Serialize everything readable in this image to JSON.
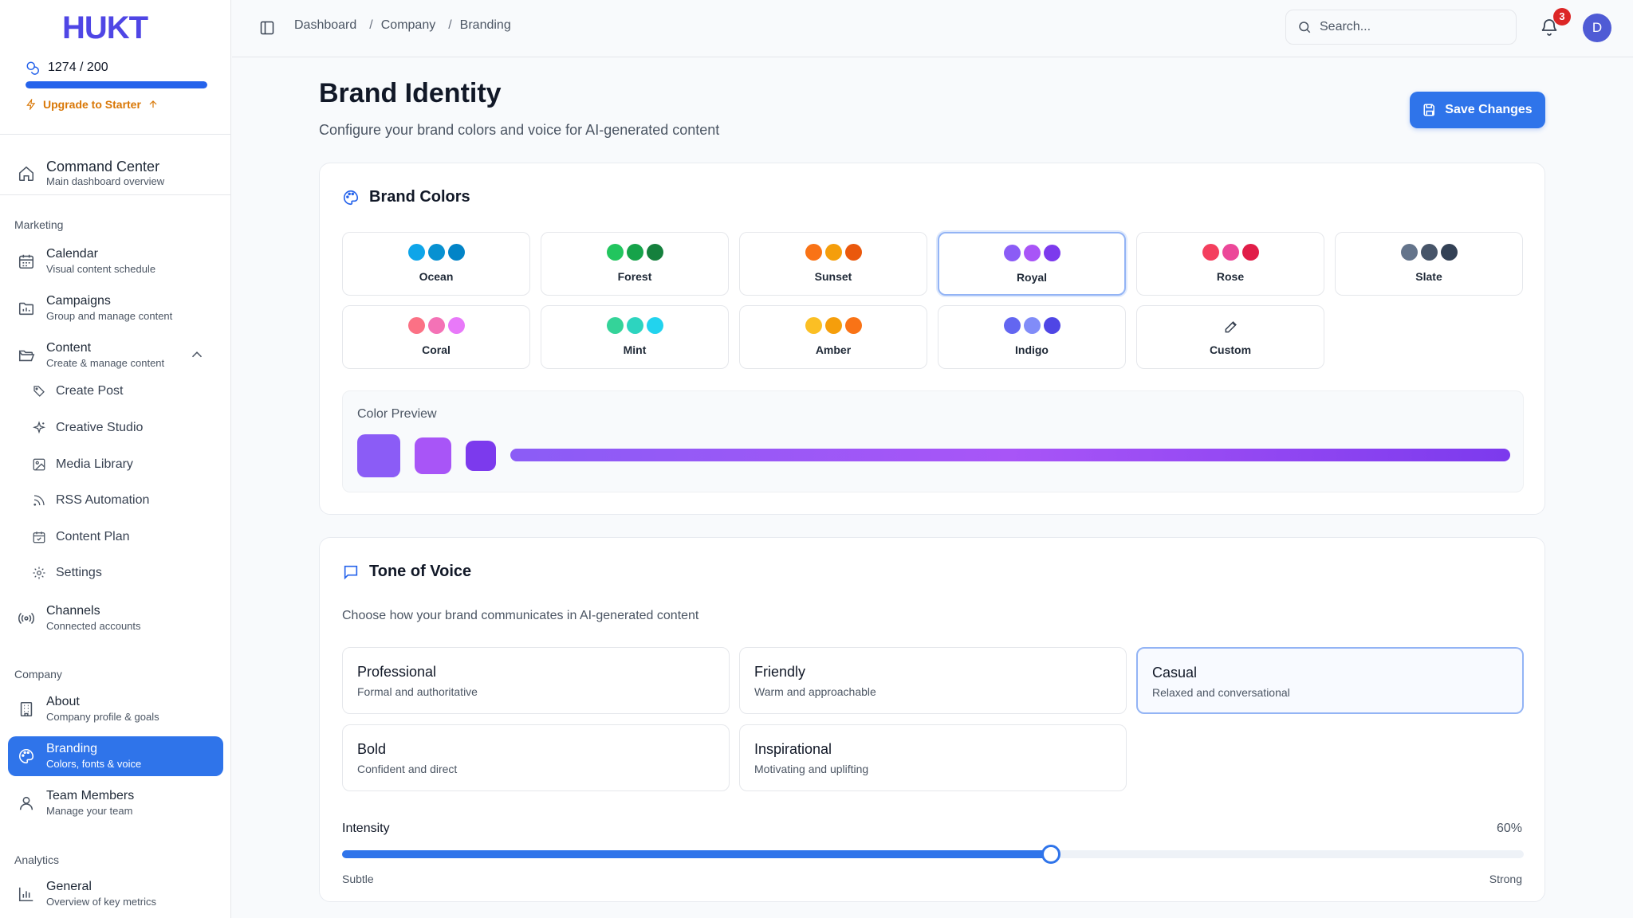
{
  "app": {
    "logo_text": "HUKT"
  },
  "credits": {
    "label": "1274 / 200",
    "fill_fraction": 1.0,
    "upgrade_label": "Upgrade to Starter"
  },
  "sidebar": {
    "command_center": {
      "title": "Command Center",
      "sub": "Main dashboard overview"
    },
    "sections": {
      "marketing": "Marketing",
      "company": "Company",
      "analytics": "Analytics"
    },
    "calendar": {
      "title": "Calendar",
      "sub": "Visual content schedule"
    },
    "campaigns": {
      "title": "Campaigns",
      "sub": "Group and manage content"
    },
    "content": {
      "title": "Content",
      "sub": "Create & manage content"
    },
    "content_items": [
      "Create Post",
      "Creative Studio",
      "Media Library",
      "RSS Automation",
      "Content Plan",
      "Settings"
    ],
    "channels": {
      "title": "Channels",
      "sub": "Connected accounts"
    },
    "about": {
      "title": "About",
      "sub": "Company profile & goals"
    },
    "branding": {
      "title": "Branding",
      "sub": "Colors, fonts & voice"
    },
    "team": {
      "title": "Team Members",
      "sub": "Manage your team"
    },
    "general": {
      "title": "General",
      "sub": "Overview of key metrics"
    }
  },
  "topbar": {
    "breadcrumbs": [
      "Dashboard",
      "Company",
      "Branding"
    ],
    "search_placeholder": "Search...",
    "notification_count": "3",
    "avatar_initial": "D"
  },
  "page": {
    "title": "Brand Identity",
    "subtitle": "Configure your brand colors and voice for AI-generated content",
    "save_label": "Save Changes"
  },
  "brand_colors": {
    "heading": "Brand Colors",
    "selected": "Royal",
    "palettes": [
      {
        "name": "Ocean",
        "colors": [
          "#0ea5e9",
          "#0891d1",
          "#0284c7"
        ]
      },
      {
        "name": "Forest",
        "colors": [
          "#22c55e",
          "#16a34a",
          "#15803d"
        ]
      },
      {
        "name": "Sunset",
        "colors": [
          "#f97316",
          "#f59e0b",
          "#ea580c"
        ]
      },
      {
        "name": "Royal",
        "colors": [
          "#8b5cf6",
          "#a855f7",
          "#7c3aed"
        ]
      },
      {
        "name": "Rose",
        "colors": [
          "#f43f5e",
          "#ec4899",
          "#e11d48"
        ]
      },
      {
        "name": "Slate",
        "colors": [
          "#64748b",
          "#475569",
          "#334155"
        ]
      },
      {
        "name": "Coral",
        "colors": [
          "#fb7185",
          "#f472b6",
          "#e879f9"
        ]
      },
      {
        "name": "Mint",
        "colors": [
          "#34d399",
          "#2dd4bf",
          "#22d3ee"
        ]
      },
      {
        "name": "Amber",
        "colors": [
          "#fbbf24",
          "#f59e0b",
          "#f97316"
        ]
      },
      {
        "name": "Indigo",
        "colors": [
          "#6366f1",
          "#818cf8",
          "#4f46e5"
        ]
      }
    ],
    "custom_label": "Custom",
    "preview_label": "Color Preview",
    "preview_colors": [
      "#8b5cf6",
      "#a855f7",
      "#7c3aed"
    ]
  },
  "tone": {
    "heading": "Tone of Voice",
    "description": "Choose how your brand communicates in AI-generated content",
    "selected": "Casual",
    "options": [
      {
        "title": "Professional",
        "sub": "Formal and authoritative"
      },
      {
        "title": "Friendly",
        "sub": "Warm and approachable"
      },
      {
        "title": "Casual",
        "sub": "Relaxed and conversational"
      },
      {
        "title": "Bold",
        "sub": "Confident and direct"
      },
      {
        "title": "Inspirational",
        "sub": "Motivating and uplifting"
      }
    ],
    "intensity_label": "Intensity",
    "intensity_value": 60,
    "intensity_text": "60%",
    "scale_min": "Subtle",
    "scale_max": "Strong"
  },
  "colors": {
    "accent": "#2f74ea",
    "logo": "#4f46e5",
    "upgrade": "#d97706",
    "badge": "#dc2626"
  }
}
